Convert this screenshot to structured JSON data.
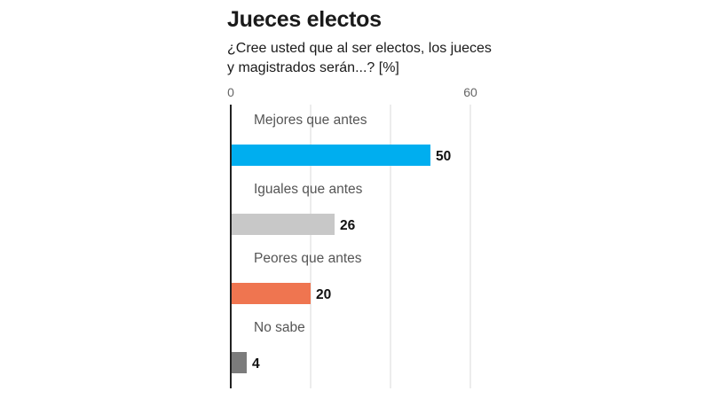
{
  "chart_data": {
    "type": "bar",
    "orientation": "horizontal",
    "title": "Jueces electos",
    "subtitle": "¿Cree usted que al ser electos, los jueces y magistrados serán...? [%]",
    "xlim": [
      0,
      60
    ],
    "xticks": [
      0,
      60
    ],
    "gridlines": [
      20,
      40,
      60
    ],
    "categories": [
      "Mejores que antes",
      "Iguales que antes",
      "Peores que antes",
      "No sabe"
    ],
    "values": [
      50,
      26,
      20,
      4
    ],
    "colors": [
      "#00aeef",
      "#c8c8c8",
      "#ef7550",
      "#7b7b7b"
    ],
    "grid_color": "#d9d9d9",
    "axis_color": "#222222"
  }
}
